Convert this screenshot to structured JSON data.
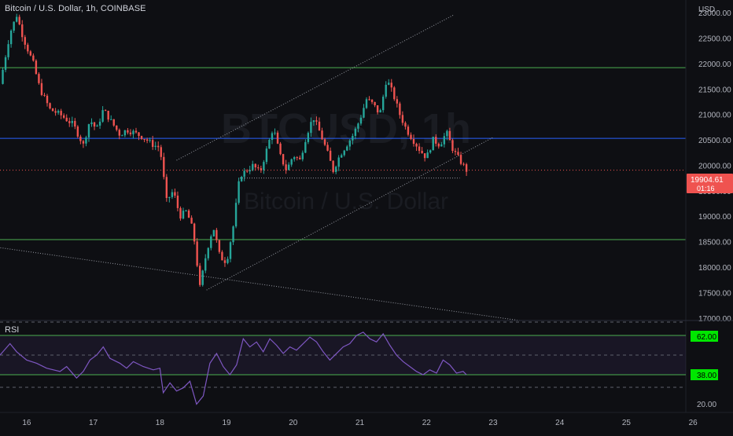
{
  "header": {
    "symbol_title": "Bitcoin / U.S. Dollar, 1h, COINBASE",
    "watermark_main": "BTCUSD, 1h",
    "watermark_sub": "Bitcoin / U.S. Dollar",
    "currency": "USD"
  },
  "price_badge": {
    "price": "19904.61",
    "countdown": "01:16"
  },
  "rsi_panel": {
    "label": "RSI",
    "upper_badge": "62.00",
    "lower_badge": "38.00",
    "tick_20": "20.00"
  },
  "colors": {
    "background": "#0e0f13",
    "up_candle": "#26a69a",
    "down_candle": "#ef5350",
    "green_level": "#4caf50",
    "blue_level": "#2962ff",
    "rsi_line": "#7e57c2",
    "badge_green": "#00e600",
    "badge_red": "#ef5350"
  },
  "chart_data": {
    "type": "candlestick",
    "title": "Bitcoin / U.S. Dollar, 1h, COINBASE",
    "y_axis": {
      "unit": "USD",
      "ticks": [
        23000,
        22500,
        22000,
        21500,
        21000,
        20500,
        20000,
        19500,
        19000,
        18500,
        18000,
        17500,
        17000
      ],
      "range": [
        16950,
        23250
      ]
    },
    "x_axis": {
      "ticks": [
        "16",
        "17",
        "18",
        "19",
        "20",
        "21",
        "22",
        "23",
        "24",
        "25",
        "26"
      ],
      "range_days": [
        15.6,
        26.6
      ]
    },
    "last_price": 19904.61,
    "horizontal_levels": [
      {
        "price": 21920,
        "color": "green"
      },
      {
        "price": 20530,
        "color": "blue"
      },
      {
        "price": 18540,
        "color": "green"
      }
    ],
    "trendlines": [
      {
        "from": [
          18.25,
          20100
        ],
        "to": [
          22.4,
          22950
        ],
        "style": "dotted"
      },
      {
        "from": [
          18.7,
          17550
        ],
        "to": [
          23.0,
          20550
        ],
        "style": "dotted"
      },
      {
        "from": [
          15.5,
          18400
        ],
        "to": [
          23.4,
          16950
        ],
        "style": "dotted"
      },
      {
        "from": [
          19.2,
          19750
        ],
        "to": [
          22.5,
          19750
        ],
        "style": "dotted"
      }
    ],
    "price_path": [
      [
        15.6,
        21600
      ],
      [
        15.75,
        22600
      ],
      [
        15.85,
        22950
      ],
      [
        15.95,
        22500
      ],
      [
        16.1,
        22000
      ],
      [
        16.2,
        21500
      ],
      [
        16.35,
        21100
      ],
      [
        16.5,
        21000
      ],
      [
        16.6,
        20900
      ],
      [
        16.7,
        20800
      ],
      [
        16.85,
        20400
      ],
      [
        16.95,
        20900
      ],
      [
        17.05,
        20700
      ],
      [
        17.15,
        21100
      ],
      [
        17.25,
        20900
      ],
      [
        17.4,
        20600
      ],
      [
        17.5,
        20700
      ],
      [
        17.6,
        20650
      ],
      [
        17.75,
        20550
      ],
      [
        17.9,
        20400
      ],
      [
        18.0,
        20350
      ],
      [
        18.1,
        19300
      ],
      [
        18.2,
        19500
      ],
      [
        18.3,
        19000
      ],
      [
        18.4,
        19100
      ],
      [
        18.5,
        18700
      ],
      [
        18.6,
        17600
      ],
      [
        18.7,
        18300
      ],
      [
        18.8,
        18800
      ],
      [
        18.9,
        18200
      ],
      [
        19.0,
        18100
      ],
      [
        19.1,
        18800
      ],
      [
        19.2,
        19800
      ],
      [
        19.3,
        19900
      ],
      [
        19.4,
        20000
      ],
      [
        19.5,
        19850
      ],
      [
        19.6,
        20300
      ],
      [
        19.7,
        20750
      ],
      [
        19.8,
        20200
      ],
      [
        19.9,
        19900
      ],
      [
        20.0,
        20200
      ],
      [
        20.1,
        20100
      ],
      [
        20.2,
        20600
      ],
      [
        20.3,
        20950
      ],
      [
        20.4,
        20650
      ],
      [
        20.5,
        20300
      ],
      [
        20.6,
        19900
      ],
      [
        20.7,
        20200
      ],
      [
        20.8,
        20400
      ],
      [
        20.9,
        20600
      ],
      [
        21.0,
        20900
      ],
      [
        21.1,
        21300
      ],
      [
        21.2,
        21200
      ],
      [
        21.3,
        21000
      ],
      [
        21.4,
        21700
      ],
      [
        21.5,
        21400
      ],
      [
        21.6,
        21000
      ],
      [
        21.7,
        20700
      ],
      [
        21.8,
        20500
      ],
      [
        21.9,
        20300
      ],
      [
        22.0,
        20150
      ],
      [
        22.1,
        20500
      ],
      [
        22.2,
        20400
      ],
      [
        22.3,
        20650
      ],
      [
        22.4,
        20300
      ],
      [
        22.5,
        20100
      ],
      [
        22.6,
        19904.61
      ]
    ],
    "rsi": {
      "upper_level": 62,
      "lower_level": 38,
      "visible_tick": 20,
      "range": [
        15,
        69
      ],
      "path": [
        [
          15.6,
          50
        ],
        [
          15.75,
          57
        ],
        [
          15.85,
          52
        ],
        [
          16.0,
          47
        ],
        [
          16.15,
          45
        ],
        [
          16.3,
          42
        ],
        [
          16.5,
          40
        ],
        [
          16.6,
          43
        ],
        [
          16.75,
          36
        ],
        [
          16.85,
          40
        ],
        [
          16.95,
          47
        ],
        [
          17.05,
          50
        ],
        [
          17.15,
          55
        ],
        [
          17.25,
          48
        ],
        [
          17.4,
          45
        ],
        [
          17.5,
          42
        ],
        [
          17.6,
          46
        ],
        [
          17.75,
          43
        ],
        [
          17.9,
          41
        ],
        [
          18.0,
          42
        ],
        [
          18.05,
          27
        ],
        [
          18.15,
          33
        ],
        [
          18.25,
          28
        ],
        [
          18.35,
          30
        ],
        [
          18.45,
          34
        ],
        [
          18.55,
          20
        ],
        [
          18.65,
          25
        ],
        [
          18.75,
          45
        ],
        [
          18.85,
          51
        ],
        [
          18.95,
          43
        ],
        [
          19.05,
          38
        ],
        [
          19.15,
          44
        ],
        [
          19.25,
          60
        ],
        [
          19.35,
          55
        ],
        [
          19.45,
          58
        ],
        [
          19.55,
          52
        ],
        [
          19.65,
          60
        ],
        [
          19.75,
          56
        ],
        [
          19.85,
          51
        ],
        [
          19.95,
          55
        ],
        [
          20.05,
          53
        ],
        [
          20.15,
          57
        ],
        [
          20.25,
          61
        ],
        [
          20.35,
          58
        ],
        [
          20.45,
          52
        ],
        [
          20.55,
          47
        ],
        [
          20.65,
          51
        ],
        [
          20.75,
          55
        ],
        [
          20.85,
          57
        ],
        [
          20.95,
          62
        ],
        [
          21.05,
          64
        ],
        [
          21.15,
          60
        ],
        [
          21.25,
          58
        ],
        [
          21.35,
          63
        ],
        [
          21.45,
          56
        ],
        [
          21.55,
          50
        ],
        [
          21.65,
          46
        ],
        [
          21.75,
          43
        ],
        [
          21.85,
          40
        ],
        [
          21.95,
          38
        ],
        [
          22.05,
          41
        ],
        [
          22.15,
          39
        ],
        [
          22.25,
          47
        ],
        [
          22.35,
          44
        ],
        [
          22.45,
          39
        ],
        [
          22.55,
          40
        ],
        [
          22.6,
          38
        ]
      ]
    }
  }
}
